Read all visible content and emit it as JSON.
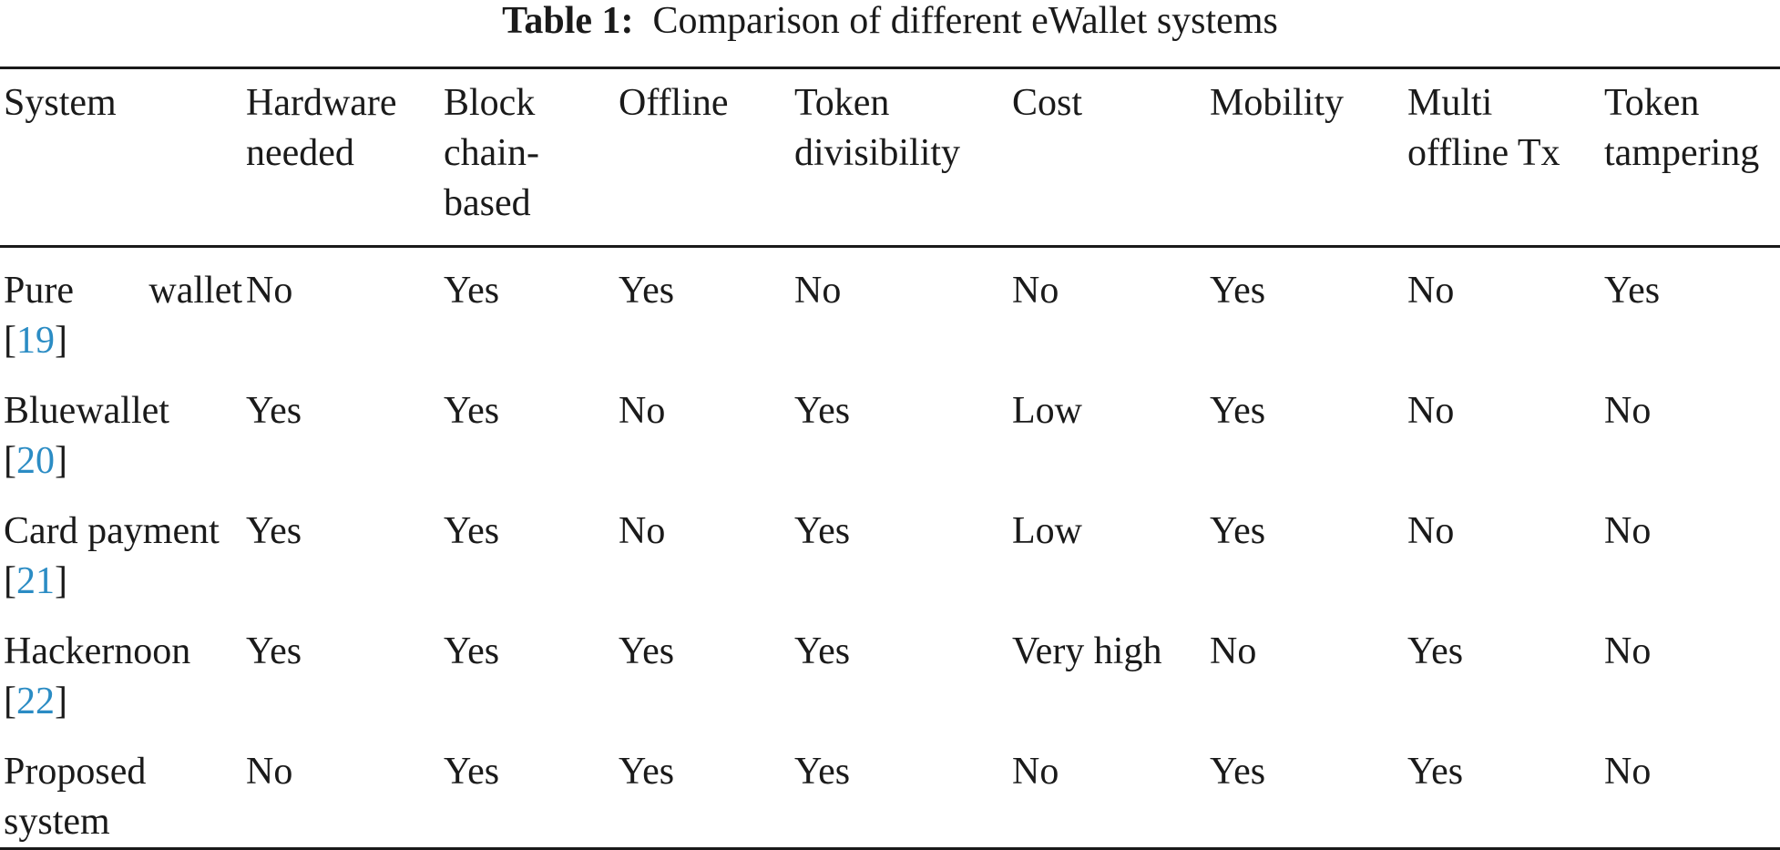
{
  "caption": {
    "label": "Table 1:",
    "text": "Comparison of different eWallet systems"
  },
  "table": {
    "headers": [
      "System",
      "Hardware needed",
      "Block chain-based",
      "Offline",
      "Token divisibility",
      "Cost",
      "Mobility",
      "Multi offline Tx",
      "Token tampering"
    ],
    "rows": [
      {
        "system": "Pure wallet",
        "ref": "19",
        "cells": [
          "No",
          "Yes",
          "Yes",
          "No",
          "No",
          "Yes",
          "No",
          "Yes"
        ]
      },
      {
        "system": "Bluewallet",
        "ref": "20",
        "cells": [
          "Yes",
          "Yes",
          "No",
          "Yes",
          "Low",
          "Yes",
          "No",
          "No"
        ]
      },
      {
        "system": "Card payment",
        "ref": "21",
        "cells": [
          "Yes",
          "Yes",
          "No",
          "Yes",
          "Low",
          "Yes",
          "No",
          "No"
        ]
      },
      {
        "system": "Hackernoon",
        "ref": "22",
        "cells": [
          "Yes",
          "Yes",
          "Yes",
          "Yes",
          "Very high",
          "No",
          "Yes",
          "No"
        ]
      },
      {
        "system": "Proposed system",
        "ref": "",
        "cells": [
          "No",
          "Yes",
          "Yes",
          "Yes",
          "No",
          "Yes",
          "Yes",
          "No"
        ]
      }
    ]
  },
  "colors": {
    "text": "#1a1a1a",
    "reference_link": "#2b8cc4",
    "background": "#ffffff"
  }
}
